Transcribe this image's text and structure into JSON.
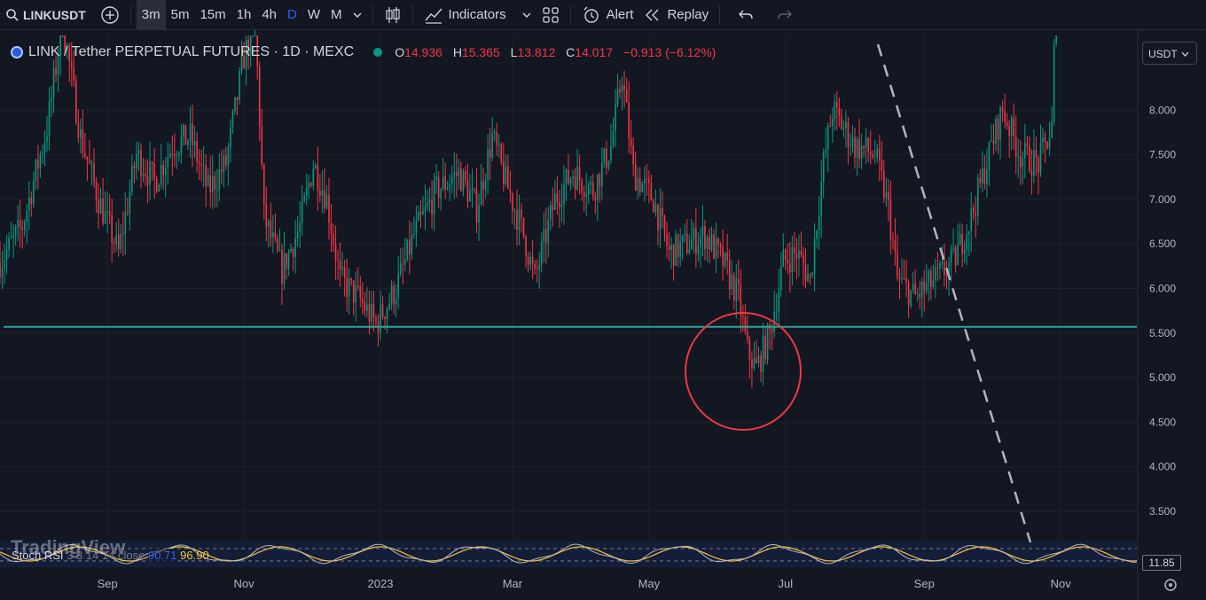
{
  "toolbar": {
    "symbol": "LINKUSDT",
    "timeframes": [
      "3m",
      "5m",
      "15m",
      "1h",
      "4h",
      "D",
      "W",
      "M"
    ],
    "active_timeframe": "3m",
    "highlighted_timeframe": "D",
    "indicators_label": "Indicators",
    "alert_label": "Alert",
    "replay_label": "Replay"
  },
  "legend": {
    "pair": "LINK / Tether PERPETUAL FUTURES · 1D · MEXC",
    "o_label": "O",
    "o_value": "14.936",
    "h_label": "H",
    "h_value": "15.365",
    "l_label": "L",
    "l_value": "13.812",
    "c_label": "C",
    "c_value": "14.017",
    "change": "−0.913 (−6.12%)"
  },
  "currency": "USDT",
  "stoch": {
    "name": "Stoch RSI",
    "params": "3 3 14 14 close",
    "k_value": "90.71",
    "d_value": "96.90",
    "badge": "11.85"
  },
  "watermark": "TradingView",
  "colors": {
    "background": "#131722",
    "up": "#089981",
    "down": "#f23645",
    "support_line": "#26a69a",
    "circle": "#f23645",
    "trendline": "#b2b5be",
    "stoch_k": "#2962ff",
    "stoch_d": "#f7c23c"
  },
  "chart_data": {
    "type": "candlestick",
    "y_ticks": [
      "3.500",
      "4.000",
      "4.500",
      "5.000",
      "5.500",
      "6.000",
      "6.500",
      "7.000",
      "7.500",
      "8.000"
    ],
    "ylim": [
      3.2,
      8.4
    ],
    "x_ticks": [
      "Sep",
      "Nov",
      "2023",
      "Mar",
      "May",
      "Jul",
      "Sep",
      "Nov"
    ],
    "support_level": 5.57,
    "circled_low_region": {
      "x_label": "Jun 2023",
      "y_center": 5.0
    },
    "trendline": [
      {
        "x": "2023-08-20",
        "y": 8.8
      },
      {
        "x": "2023-11-01",
        "y": 3.2
      }
    ],
    "price_path": [
      {
        "x": "2022-07-15",
        "y": 6.3
      },
      {
        "x": "2022-07-25",
        "y": 6.7
      },
      {
        "x": "2022-08-05",
        "y": 7.8
      },
      {
        "x": "2022-08-12",
        "y": 9.0
      },
      {
        "x": "2022-08-20",
        "y": 7.7
      },
      {
        "x": "2022-08-28",
        "y": 7.0
      },
      {
        "x": "2022-09-06",
        "y": 6.4
      },
      {
        "x": "2022-09-14",
        "y": 7.5
      },
      {
        "x": "2022-09-22",
        "y": 7.2
      },
      {
        "x": "2022-09-30",
        "y": 7.6
      },
      {
        "x": "2022-10-08",
        "y": 7.7
      },
      {
        "x": "2022-10-16",
        "y": 7.1
      },
      {
        "x": "2022-10-24",
        "y": 7.4
      },
      {
        "x": "2022-11-01",
        "y": 8.6
      },
      {
        "x": "2022-11-06",
        "y": 9.0
      },
      {
        "x": "2022-11-10",
        "y": 6.8
      },
      {
        "x": "2022-11-18",
        "y": 6.2
      },
      {
        "x": "2022-11-26",
        "y": 6.7
      },
      {
        "x": "2022-12-02",
        "y": 7.4
      },
      {
        "x": "2022-12-08",
        "y": 7.0
      },
      {
        "x": "2022-12-14",
        "y": 6.1
      },
      {
        "x": "2022-12-22",
        "y": 5.9
      },
      {
        "x": "2022-12-30",
        "y": 5.6
      },
      {
        "x": "2023-01-08",
        "y": 6.0
      },
      {
        "x": "2023-01-16",
        "y": 6.6
      },
      {
        "x": "2023-01-26",
        "y": 7.1
      },
      {
        "x": "2023-02-05",
        "y": 7.3
      },
      {
        "x": "2023-02-13",
        "y": 6.9
      },
      {
        "x": "2023-02-20",
        "y": 7.7
      },
      {
        "x": "2023-02-26",
        "y": 7.2
      },
      {
        "x": "2023-03-06",
        "y": 6.6
      },
      {
        "x": "2023-03-11",
        "y": 6.1
      },
      {
        "x": "2023-03-20",
        "y": 7.0
      },
      {
        "x": "2023-03-28",
        "y": 7.3
      },
      {
        "x": "2023-04-06",
        "y": 7.1
      },
      {
        "x": "2023-04-14",
        "y": 7.6
      },
      {
        "x": "2023-04-19",
        "y": 8.4
      },
      {
        "x": "2023-04-24",
        "y": 7.3
      },
      {
        "x": "2023-05-03",
        "y": 7.0
      },
      {
        "x": "2023-05-10",
        "y": 6.4
      },
      {
        "x": "2023-05-18",
        "y": 6.5
      },
      {
        "x": "2023-05-26",
        "y": 6.6
      },
      {
        "x": "2023-06-03",
        "y": 6.3
      },
      {
        "x": "2023-06-10",
        "y": 5.9
      },
      {
        "x": "2023-06-14",
        "y": 5.3
      },
      {
        "x": "2023-06-18",
        "y": 5.1
      },
      {
        "x": "2023-06-24",
        "y": 5.5
      },
      {
        "x": "2023-06-30",
        "y": 6.3
      },
      {
        "x": "2023-07-06",
        "y": 6.4
      },
      {
        "x": "2023-07-12",
        "y": 6.1
      },
      {
        "x": "2023-07-18",
        "y": 7.4
      },
      {
        "x": "2023-07-22",
        "y": 8.0
      },
      {
        "x": "2023-08-01",
        "y": 7.6
      },
      {
        "x": "2023-08-10",
        "y": 7.5
      },
      {
        "x": "2023-08-16",
        "y": 6.9
      },
      {
        "x": "2023-08-20",
        "y": 6.1
      },
      {
        "x": "2023-08-28",
        "y": 5.9
      },
      {
        "x": "2023-09-06",
        "y": 6.1
      },
      {
        "x": "2023-09-14",
        "y": 6.3
      },
      {
        "x": "2023-09-22",
        "y": 6.8
      },
      {
        "x": "2023-10-01",
        "y": 7.6
      },
      {
        "x": "2023-10-06",
        "y": 8.0
      },
      {
        "x": "2023-10-14",
        "y": 7.5
      },
      {
        "x": "2023-10-22",
        "y": 7.4
      },
      {
        "x": "2023-10-28",
        "y": 7.8
      },
      {
        "x": "2023-10-30",
        "y": 9.5
      }
    ]
  }
}
